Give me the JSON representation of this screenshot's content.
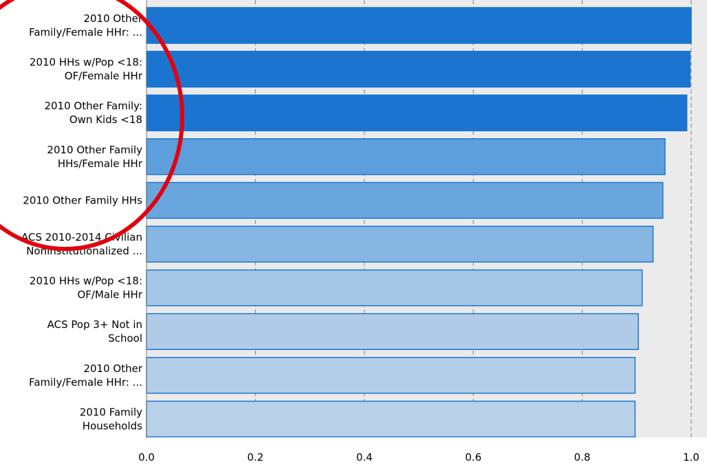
{
  "chart_data": {
    "type": "bar",
    "orientation": "horizontal",
    "categories": [
      [
        "2010 Other",
        "Family/Female HHr: ..."
      ],
      [
        "2010 HHs w/Pop <18:",
        "OF/Female HHr"
      ],
      [
        "2010 Other Family:",
        "Own Kids <18"
      ],
      [
        "2010 Other Family",
        "HHs/Female HHr"
      ],
      [
        "2010 Other Family HHs"
      ],
      [
        "ACS 2010-2014 Civilian",
        "Noninstitutionalized ..."
      ],
      [
        "2010 HHs w/Pop <18:",
        "OF/Male HHr"
      ],
      [
        "ACS Pop 3+ Not in",
        "School"
      ],
      [
        "2010 Other",
        "Family/Female HHr: ..."
      ],
      [
        "2010 Family",
        "Households"
      ]
    ],
    "values": [
      1.0,
      0.998,
      0.992,
      0.952,
      0.948,
      0.93,
      0.91,
      0.903,
      0.897,
      0.897
    ],
    "xlim": [
      0,
      1.0
    ],
    "xticks": [
      "0.0",
      "0.2",
      "0.4",
      "0.6",
      "0.8",
      "1.0"
    ],
    "grid": true,
    "colors": {
      "bar_fills": [
        "#1b75d0",
        "#1b75d0",
        "#1b75d0",
        "#5c9fdc",
        "#6aa6de",
        "#88b6e2",
        "#a5c6e6",
        "#b0cbe7",
        "#b5cee8",
        "#b8d0e8"
      ],
      "bar_stroke": "#1b75d0",
      "plot_background": "#ebebeb",
      "grid": "#7f7f7f",
      "annotation_circle": "#e3000f"
    }
  }
}
